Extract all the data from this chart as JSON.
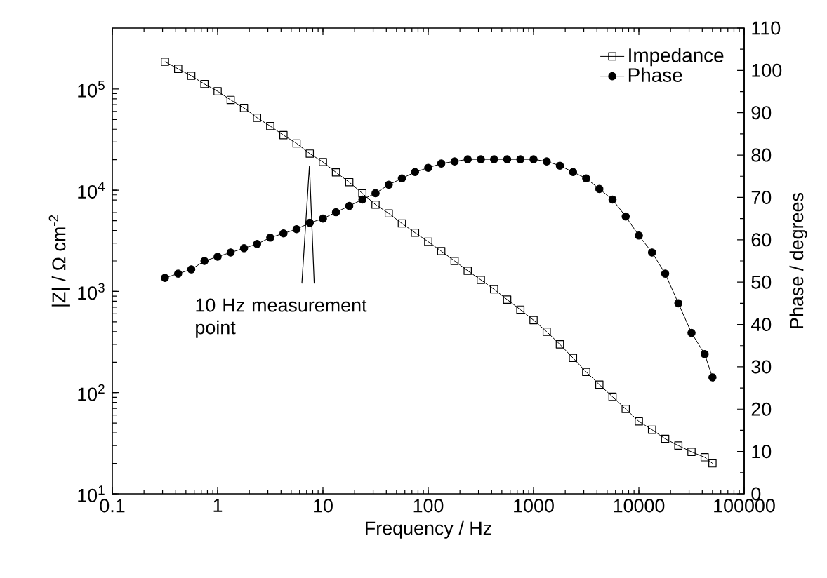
{
  "chart_data": {
    "type": "line",
    "xlabel": "Frequency / Hz",
    "ylabel": "|Z| / Ω cm$^{-2}$",
    "y2label": "Phase / degrees",
    "log": "xy",
    "legend": "top right",
    "grid": false,
    "xlim": [
      0.1,
      100000
    ],
    "xticks": [
      0.1,
      1,
      10,
      100,
      1000,
      10000,
      100000
    ],
    "ylim": [
      10,
      400000
    ],
    "yticks": [
      {
        "value": 10,
        "label": "10$^{1}$"
      },
      {
        "value": 100,
        "label": "10$^{2}$"
      },
      {
        "value": 1000,
        "label": "10$^{3}$"
      },
      {
        "value": 10000,
        "label": "10$^{4}$"
      },
      {
        "value": 100000,
        "label": "10$^{5}$"
      }
    ],
    "y2lim": [
      0,
      110
    ],
    "y2ticks": [
      0,
      10,
      20,
      30,
      40,
      50,
      60,
      70,
      80,
      90,
      100,
      110
    ],
    "x": [
      0.316,
      0.422,
      0.562,
      0.75,
      1,
      1.33,
      1.78,
      2.37,
      3.16,
      4.22,
      5.62,
      7.5,
      10,
      13.3,
      17.8,
      23.7,
      31.6,
      42.2,
      56.2,
      75,
      100,
      133,
      178,
      237,
      316,
      422,
      562,
      750,
      1000,
      1334,
      1778,
      2371,
      3162,
      4217,
      5623,
      7499,
      10000,
      13335,
      17783,
      23714,
      31623,
      42170,
      50000
    ],
    "series": [
      {
        "name": "Impedance",
        "color": "#000000",
        "marker": "square",
        "values": [
          186000,
          158000,
          135000,
          112000,
          95000,
          78000,
          65000,
          52000,
          43000,
          35000,
          29000,
          23000,
          19000,
          15000,
          12000,
          9300,
          7200,
          5900,
          4700,
          3800,
          3100,
          2500,
          2000,
          1600,
          1300,
          1050,
          830,
          660,
          520,
          400,
          300,
          220,
          160,
          120,
          91,
          69,
          52,
          43,
          35,
          30,
          26,
          23,
          20
        ]
      },
      {
        "name": "Phase",
        "color": "#000000",
        "marker": "circle",
        "axis": "y2",
        "values": [
          51,
          52,
          53,
          55,
          56,
          57,
          58,
          59,
          60.5,
          61.5,
          62.5,
          64,
          65,
          66.5,
          68,
          69.5,
          71,
          73,
          74.5,
          76,
          77,
          78,
          78.5,
          79,
          79,
          79,
          79,
          79,
          79,
          78.5,
          77.5,
          76,
          74.5,
          72,
          69.5,
          65.5,
          61,
          57,
          52,
          45,
          38,
          33,
          27.5
        ]
      }
    ],
    "annotations": [
      "10 Hz measurement point"
    ]
  }
}
